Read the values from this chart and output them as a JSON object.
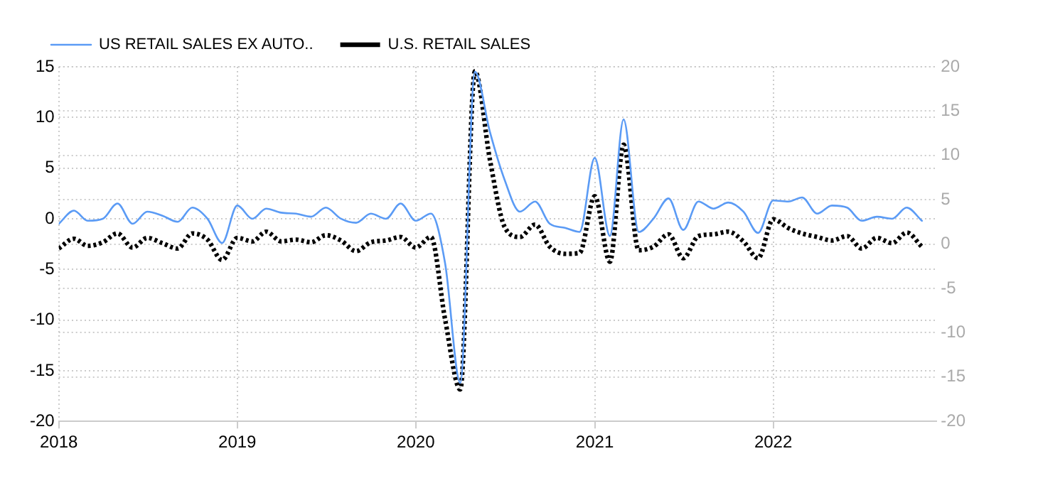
{
  "chart_data": {
    "type": "line",
    "legend": "top left",
    "grid": true,
    "marker": "none",
    "x": [
      "2018-01",
      "2018-02",
      "2018-03",
      "2018-04",
      "2018-05",
      "2018-06",
      "2018-07",
      "2018-08",
      "2018-09",
      "2018-10",
      "2018-11",
      "2018-12",
      "2019-01",
      "2019-02",
      "2019-03",
      "2019-04",
      "2019-05",
      "2019-06",
      "2019-07",
      "2019-08",
      "2019-09",
      "2019-10",
      "2019-11",
      "2019-12",
      "2020-01",
      "2020-02",
      "2020-03",
      "2020-04",
      "2020-05",
      "2020-06",
      "2020-07",
      "2020-08",
      "2020-09",
      "2020-10",
      "2020-11",
      "2020-12",
      "2021-01",
      "2021-02",
      "2021-03",
      "2021-04",
      "2021-05",
      "2021-06",
      "2021-07",
      "2021-08",
      "2021-09",
      "2021-10",
      "2021-11",
      "2021-12",
      "2022-01",
      "2022-02",
      "2022-03",
      "2022-04",
      "2022-05",
      "2022-06",
      "2022-07",
      "2022-08",
      "2022-09",
      "2022-10",
      "2022-11"
    ],
    "xlim": [
      "2018-01",
      "2022-12"
    ],
    "xticks": [
      "2018",
      "2019",
      "2020",
      "2021",
      "2022"
    ],
    "ylim": [
      -20,
      15
    ],
    "yticks": [
      -20,
      -15,
      -10,
      -5,
      0,
      5,
      10,
      15
    ],
    "y2lim": [
      -20,
      20
    ],
    "y2ticks": [
      -20,
      -15,
      -10,
      -5,
      0,
      5,
      10,
      15,
      20
    ],
    "series": [
      {
        "name": "US RETAIL SALES EX AUTO..",
        "color": "#5b9bf5",
        "line_style": "solid",
        "values": [
          -0.5,
          0.8,
          -0.2,
          0,
          1.5,
          -0.5,
          0.7,
          0.3,
          -0.3,
          1.1,
          0,
          -2.4,
          1.3,
          0,
          1.0,
          0.6,
          0.5,
          0.2,
          1.1,
          0,
          -0.4,
          0.5,
          0,
          1.5,
          -0.2,
          0.5,
          -4.4,
          -16.2,
          14.5,
          8.5,
          3.8,
          0.7,
          1.7,
          -0.5,
          -0.9,
          -1.3,
          6.0,
          -1.7,
          9.8,
          -1.3,
          0,
          2.0,
          -1.1,
          1.7,
          1.0,
          1.6,
          0.7,
          -1.4,
          1.8,
          1.7,
          2.1,
          0.5,
          1.3,
          1.1,
          -0.2,
          0.2,
          0,
          1.1,
          -0.2
        ]
      },
      {
        "name": "U.S. RETAIL SALES",
        "color": "#000000",
        "line_style": "dotted",
        "axis": "y2",
        "values": [
          -0.5,
          0.6,
          -0.2,
          0.2,
          1.2,
          -0.4,
          0.7,
          0.1,
          -0.5,
          1.2,
          0.5,
          -1.8,
          0.7,
          0.3,
          1.4,
          0.3,
          0.5,
          0.2,
          1.0,
          0.4,
          -0.8,
          0.2,
          0.4,
          0.8,
          -0.4,
          0.8,
          -8.5,
          -16.4,
          19.5,
          9.4,
          1.9,
          0.8,
          2.2,
          -0.3,
          -1.1,
          -1.0,
          5.4,
          -2.0,
          11.2,
          -0.7,
          -0.3,
          1.1,
          -1.6,
          0.9,
          1.1,
          1.4,
          0.3,
          -1.6,
          2.8,
          1.8,
          1.2,
          0.8,
          0.4,
          0.9,
          -0.5,
          0.7,
          0.1,
          1.3,
          -0.3
        ]
      }
    ]
  }
}
